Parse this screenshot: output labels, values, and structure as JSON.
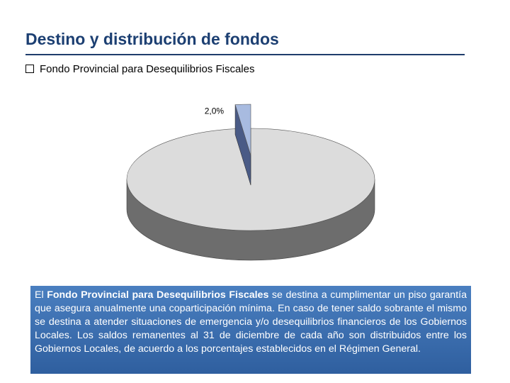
{
  "slide": {
    "title": "Destino y distribución de fondos",
    "subtitle": "Fondo Provincial para Desequilibrios Fiscales"
  },
  "chart_data": {
    "type": "pie",
    "values": [
      2,
      98
    ],
    "value_labels": [
      "2,0%",
      null
    ],
    "colors": [
      "#a8bbe0",
      "#dcdcdc"
    ],
    "side_colors": [
      "#4a5b86",
      "#6d6d6d"
    ],
    "explode": [
      true,
      false
    ]
  },
  "description": {
    "lead": "El ",
    "bold": "Fondo Provincial para Desequilibrios Fiscales",
    "rest": " se destina a cumplimentar un piso garantía que asegura anualmente una coparticipación mínima. En caso de tener saldo sobrante el mismo se destina a atender situaciones de emergencia y/o desequilibrios financieros de los Gobiernos Locales. Los saldos remanentes al 31 de diciembre de cada año son distribuidos entre los Gobiernos Locales, de acuerdo a los porcentajes establecidos en el Régimen General."
  }
}
